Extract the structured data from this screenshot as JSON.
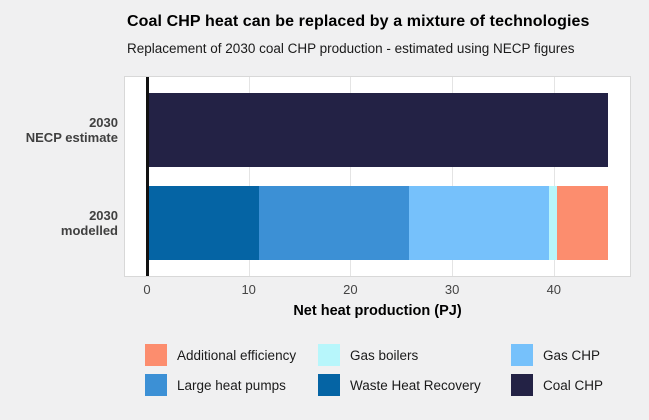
{
  "title": "Coal CHP heat can be replaced by a mixture of technologies",
  "subtitle": "Replacement of 2030 coal CHP production - estimated using NECP figures",
  "chart_data": {
    "type": "bar",
    "orientation": "horizontal",
    "stacked": true,
    "title": "Coal CHP heat can be replaced by a mixture of technologies",
    "subtitle": "Replacement of 2030 coal CHP production - estimated using NECP figures",
    "categories": [
      {
        "line1": "2030",
        "line2": "NECP estimate"
      },
      {
        "line1": "2030",
        "line2": "modelled"
      }
    ],
    "series": [
      {
        "name": "Waste Heat Recovery",
        "color": "#0564a4",
        "values": [
          0,
          11.0
        ]
      },
      {
        "name": "Large heat pumps",
        "color": "#3c90d5",
        "values": [
          0,
          14.8
        ]
      },
      {
        "name": "Gas CHP",
        "color": "#76c1fb",
        "values": [
          0,
          13.7
        ]
      },
      {
        "name": "Gas boilers",
        "color": "#b7f6fb",
        "values": [
          0,
          0.8
        ]
      },
      {
        "name": "Additional efficiency",
        "color": "#fc8d6e",
        "values": [
          0,
          5.0
        ]
      },
      {
        "name": "Coal CHP",
        "color": "#232245",
        "values": [
          45.3,
          0
        ]
      }
    ],
    "totals": [
      45.3,
      45.3
    ],
    "xlabel": "Net heat production (PJ)",
    "xticks": [
      0,
      10,
      20,
      30,
      40
    ],
    "xlim": [
      0,
      47.5
    ],
    "grid": true,
    "legend_position": "bottom"
  },
  "legend": {
    "items": [
      {
        "label": "Additional efficiency",
        "color": "#fc8d6e"
      },
      {
        "label": "Gas boilers",
        "color": "#b7f6fb"
      },
      {
        "label": "Gas CHP",
        "color": "#76c1fb"
      },
      {
        "label": "Large heat pumps",
        "color": "#3c90d5"
      },
      {
        "label": "Waste Heat Recovery",
        "color": "#0564a4"
      },
      {
        "label": "Coal CHP",
        "color": "#232245"
      }
    ]
  },
  "colors": {
    "background": "#f0f0f1",
    "panel": "#ffffff",
    "panel_border": "#d8d8d8",
    "gridline": "#e4e4e4",
    "axis_line": "#111111",
    "title_text": "#000000",
    "axis_text": "#444444",
    "category_text": "#404040"
  }
}
